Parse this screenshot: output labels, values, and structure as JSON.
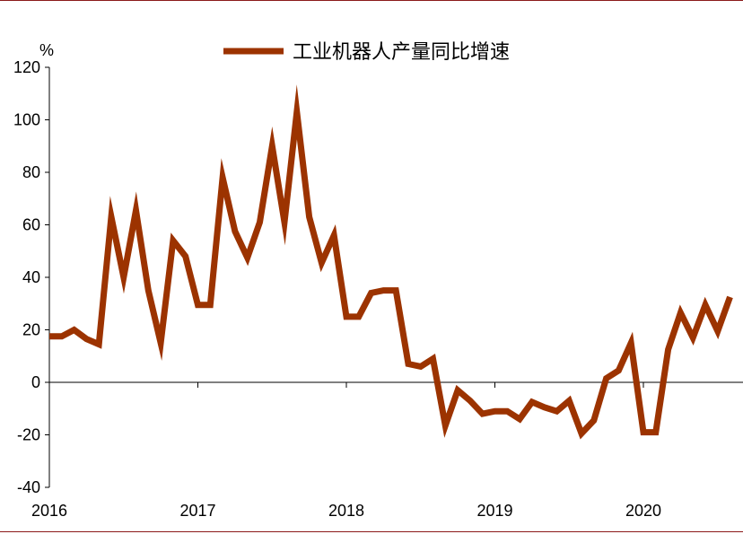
{
  "chart_data": {
    "type": "line",
    "unit_label": "%",
    "legend": [
      "工业机器人产量同比增速"
    ],
    "ylim": [
      -40,
      120
    ],
    "yticks": [
      120,
      100,
      80,
      60,
      40,
      20,
      0,
      -20,
      -40
    ],
    "xticks": [
      "2016",
      "2017",
      "2018",
      "2019",
      "2020"
    ],
    "grid": false,
    "legend_position": "top-center",
    "series_color": "#9c3300",
    "series": [
      {
        "name": "工业机器人产量同比增速",
        "x": [
          "2016-01",
          "2016-02",
          "2016-03",
          "2016-04",
          "2016-05",
          "2016-06",
          "2016-07",
          "2016-08",
          "2016-09",
          "2016-10",
          "2016-11",
          "2016-12",
          "2017-01",
          "2017-02",
          "2017-03",
          "2017-04",
          "2017-05",
          "2017-06",
          "2017-07",
          "2017-08",
          "2017-09",
          "2017-10",
          "2017-11",
          "2017-12",
          "2018-01",
          "2018-02",
          "2018-03",
          "2018-04",
          "2018-05",
          "2018-06",
          "2018-07",
          "2018-08",
          "2018-09",
          "2018-10",
          "2018-11",
          "2018-12",
          "2019-01",
          "2019-02",
          "2019-03",
          "2019-04",
          "2019-05",
          "2019-06",
          "2019-07",
          "2019-08",
          "2019-09",
          "2019-10",
          "2019-11",
          "2019-12",
          "2020-01",
          "2020-02",
          "2020-03",
          "2020-04",
          "2020-05",
          "2020-06",
          "2020-07",
          "2020-08"
        ],
        "values": [
          17.5,
          17.5,
          20,
          16.5,
          14.5,
          63,
          40,
          65.5,
          35,
          15,
          54,
          48,
          29.5,
          29.5,
          78,
          57.5,
          47.5,
          61,
          90,
          61,
          103,
          63,
          45.5,
          56,
          25,
          25,
          34,
          35,
          35,
          7,
          6,
          9,
          -16.5,
          -3,
          -7,
          -12,
          -11,
          -11,
          -14,
          -7.5,
          -9.5,
          -11,
          -7,
          -19.5,
          -14.5,
          1.5,
          4.5,
          15,
          -19,
          -19,
          12.5,
          26.5,
          17,
          29.5,
          19.5,
          32.5
        ]
      }
    ]
  }
}
